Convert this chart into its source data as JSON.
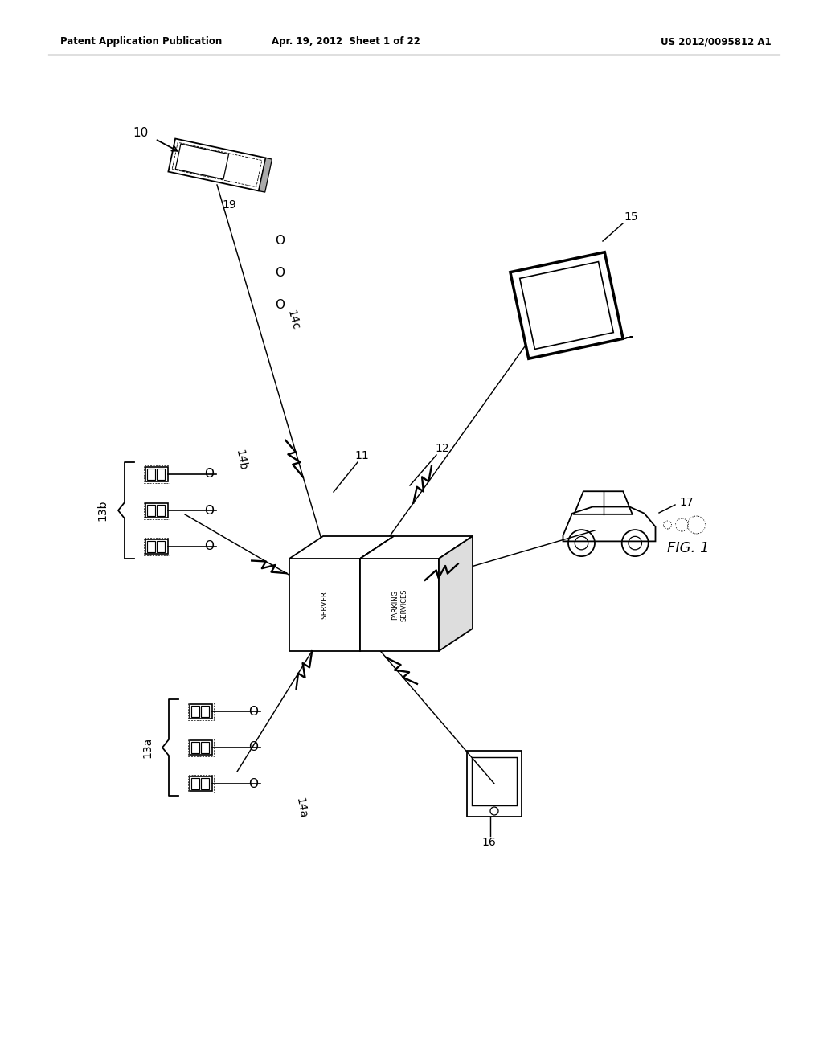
{
  "bg_color": "#ffffff",
  "header_left": "Patent Application Publication",
  "header_center": "Apr. 19, 2012  Sheet 1 of 22",
  "header_right": "US 2012/0095812 A1",
  "fig_label": "FIG. 1",
  "label_10": "10",
  "label_11": "11",
  "label_12": "12",
  "label_13a": "13a",
  "label_13b": "13b",
  "label_14a": "14a",
  "label_14b": "14b",
  "label_14c": "14c",
  "label_15": "15",
  "label_16": "16",
  "label_17": "17",
  "label_19": "19"
}
